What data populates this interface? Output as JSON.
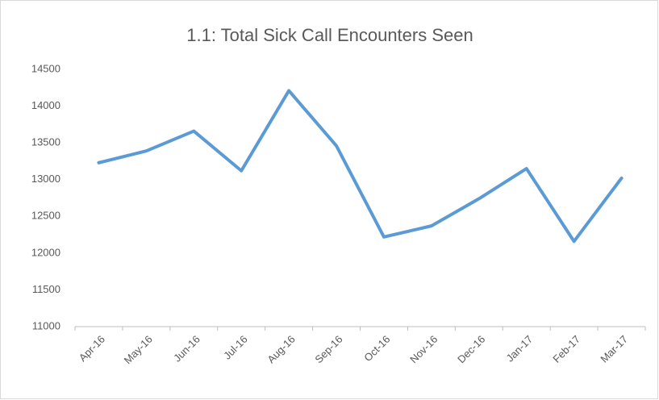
{
  "chart_data": {
    "type": "line",
    "title": "1.1: Total Sick Call Encounters Seen",
    "categories": [
      "Apr-16",
      "May-16",
      "Jun-16",
      "Jul-16",
      "Aug-16",
      "Sep-16",
      "Oct-16",
      "Nov-16",
      "Dec-16",
      "Jan-17",
      "Feb-17",
      "Mar-17"
    ],
    "series": [
      {
        "name": "Total Sick Call Encounters Seen",
        "color": "#5b9bd5",
        "values": [
          13230,
          13390,
          13660,
          13120,
          14210,
          13460,
          12220,
          12370,
          12740,
          13150,
          12160,
          13020
        ]
      }
    ],
    "ylim": [
      11000,
      14500
    ],
    "yticks": [
      11000,
      11500,
      12000,
      12500,
      13000,
      13500,
      14000,
      14500
    ],
    "grid": false
  }
}
